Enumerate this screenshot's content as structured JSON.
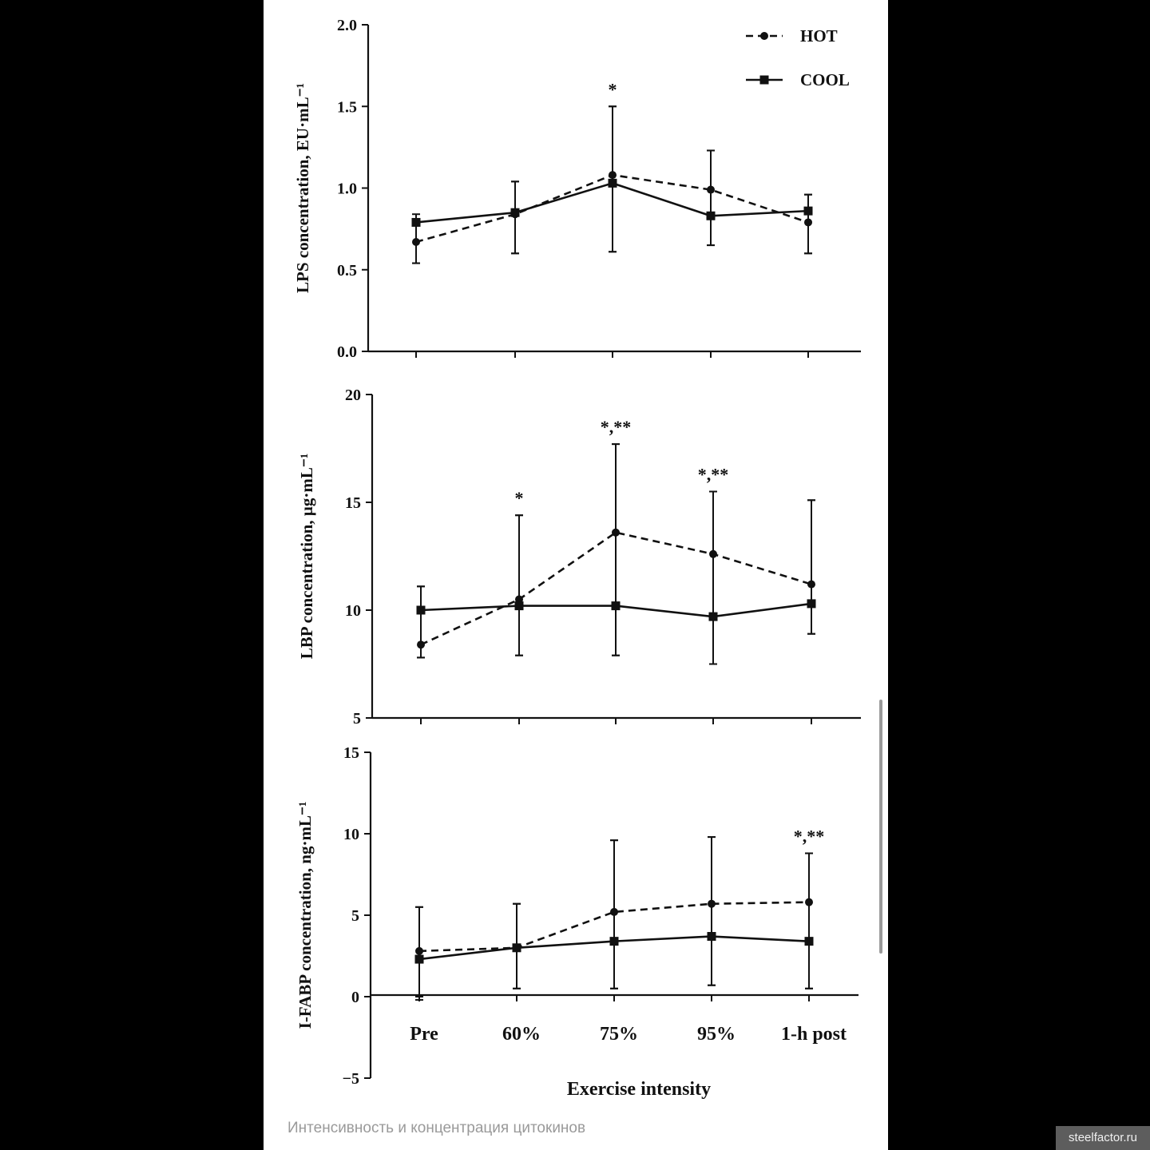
{
  "caption": "Интенсивность и концентрация цитокинов",
  "watermark": "steelfactor.ru",
  "shared_xlabel": "Exercise intensity",
  "chart_data": [
    {
      "type": "line",
      "ylabel": "LPS concentration, EU·mL⁻¹",
      "ylim": [
        0,
        2.0
      ],
      "yticks": [
        "0.0",
        "0.5",
        "1.0",
        "1.5",
        "2.0"
      ],
      "categories": [
        "Pre",
        "60%",
        "75%",
        "95%",
        "1-h post"
      ],
      "legend": {
        "position": "top-right",
        "entries": [
          "HOT",
          "COOL"
        ]
      },
      "annotations": [
        {
          "category": "75%",
          "text": "*"
        }
      ],
      "series": [
        {
          "name": "HOT",
          "style": "dashed",
          "marker": "circle",
          "values": [
            0.67,
            0.84,
            1.08,
            0.99,
            0.79
          ],
          "err_up": [
            0.12,
            0.2,
            0.42,
            0.24,
            0.17
          ],
          "err_down": [
            0.13,
            0.24,
            0.47,
            0.34,
            0.19
          ]
        },
        {
          "name": "COOL",
          "style": "solid",
          "marker": "square",
          "values": [
            0.79,
            0.85,
            1.03,
            0.83,
            0.86
          ],
          "err_up": [
            0.05,
            0.19,
            0.47,
            0.4,
            0.1
          ],
          "err_down": [
            0.25,
            0.25,
            0.42,
            0.18,
            0.26
          ]
        }
      ]
    },
    {
      "type": "line",
      "ylabel": "LBP concentration, µg·mL⁻¹",
      "ylim": [
        5,
        20
      ],
      "yticks": [
        "5",
        "10",
        "15",
        "20"
      ],
      "categories": [
        "Pre",
        "60%",
        "75%",
        "95%",
        "1-h post"
      ],
      "annotations": [
        {
          "category": "60%",
          "text": "*"
        },
        {
          "category": "75%",
          "text": "*,**"
        },
        {
          "category": "95%",
          "text": "*,**"
        }
      ],
      "series": [
        {
          "name": "HOT",
          "style": "dashed",
          "marker": "circle",
          "values": [
            8.4,
            10.5,
            13.6,
            12.6,
            11.2
          ],
          "err_up": [
            2.7,
            3.9,
            4.1,
            2.9,
            3.9
          ],
          "err_down": [
            0.6,
            2.6,
            5.7,
            5.1,
            2.3
          ]
        },
        {
          "name": "COOL",
          "style": "solid",
          "marker": "square",
          "values": [
            10.0,
            10.2,
            10.2,
            9.7,
            10.3
          ],
          "err_up": [
            1.1,
            4.2,
            7.5,
            5.8,
            4.8
          ],
          "err_down": [
            2.2,
            2.3,
            2.3,
            2.2,
            1.4
          ]
        }
      ]
    },
    {
      "type": "line",
      "ylabel": "I-FABP concentration, ng·mL⁻¹",
      "xlabel": "Exercise intensity",
      "ylim": [
        -5,
        15
      ],
      "yticks": [
        "-5",
        "0",
        "5",
        "10",
        "15"
      ],
      "categories": [
        "Pre",
        "60%",
        "75%",
        "95%",
        "1-h post"
      ],
      "annotations": [
        {
          "category": "1-h post",
          "text": "*,**"
        }
      ],
      "series": [
        {
          "name": "HOT",
          "style": "dashed",
          "marker": "circle",
          "values": [
            2.8,
            3.0,
            5.2,
            5.7,
            5.8
          ],
          "err_up": [
            2.7,
            2.7,
            4.4,
            4.1,
            3.0
          ],
          "err_down": [
            3.0,
            2.5,
            4.7,
            5.0,
            5.3
          ]
        },
        {
          "name": "COOL",
          "style": "solid",
          "marker": "square",
          "values": [
            2.3,
            3.0,
            3.4,
            3.7,
            3.4
          ],
          "err_up": [
            3.2,
            2.7,
            6.2,
            6.1,
            5.4
          ],
          "err_down": [
            2.3,
            2.5,
            2.9,
            3.0,
            2.9
          ]
        }
      ]
    }
  ]
}
